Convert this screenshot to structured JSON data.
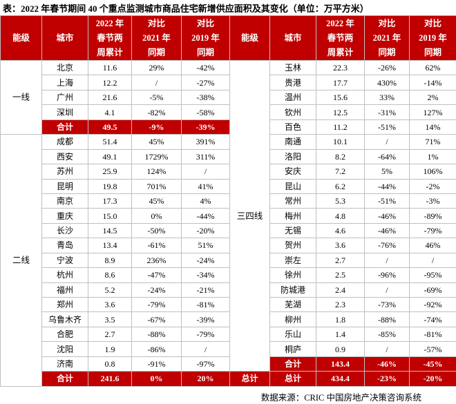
{
  "title": "表：2022 年春节期间 40 个重点监测城市商品住宅新增供应面积及其变化（单位：万平方米）",
  "header": {
    "left": [
      [
        "能级"
      ],
      [
        "城市"
      ],
      [
        "2022 年",
        "春节两",
        "周累计"
      ],
      [
        "对比",
        "2021 年",
        "同期"
      ],
      [
        "对比",
        "2019 年",
        "同期"
      ]
    ],
    "right": [
      [
        "能级"
      ],
      [
        "城市"
      ],
      [
        "2022 年",
        "春节两",
        "周累计"
      ],
      [
        "对比",
        "2021 年",
        "同期"
      ],
      [
        "对比",
        "2019 年",
        "同期"
      ]
    ]
  },
  "left_groups": [
    {
      "tier": "一线",
      "rows": [
        [
          "北京",
          "11.6",
          "29%",
          "-42%"
        ],
        [
          "上海",
          "12.2",
          "/",
          "-27%"
        ],
        [
          "广州",
          "21.6",
          "-5%",
          "-38%"
        ],
        [
          "深圳",
          "4.1",
          "-82%",
          "-58%"
        ]
      ],
      "total": [
        "合计",
        "49.5",
        "-9%",
        "-39%"
      ]
    },
    {
      "tier": "二线",
      "rows": [
        [
          "成都",
          "51.4",
          "45%",
          "391%"
        ],
        [
          "西安",
          "49.1",
          "1729%",
          "311%"
        ],
        [
          "苏州",
          "25.9",
          "124%",
          "/"
        ],
        [
          "昆明",
          "19.8",
          "701%",
          "41%"
        ],
        [
          "南京",
          "17.3",
          "45%",
          "4%"
        ],
        [
          "重庆",
          "15.0",
          "0%",
          "-44%"
        ],
        [
          "长沙",
          "14.5",
          "-50%",
          "-20%"
        ],
        [
          "青岛",
          "13.4",
          "-61%",
          "51%"
        ],
        [
          "宁波",
          "8.9",
          "236%",
          "-24%"
        ],
        [
          "杭州",
          "8.6",
          "-47%",
          "-34%"
        ],
        [
          "福州",
          "5.2",
          "-24%",
          "-21%"
        ],
        [
          "郑州",
          "3.6",
          "-79%",
          "-81%"
        ],
        [
          "乌鲁木齐",
          "3.5",
          "-67%",
          "-39%"
        ],
        [
          "合肥",
          "2.7",
          "-88%",
          "-79%"
        ],
        [
          "沈阳",
          "1.9",
          "-86%",
          "/"
        ],
        [
          "济南",
          "0.8",
          "-91%",
          "-97%"
        ]
      ],
      "total": [
        "合计",
        "241.6",
        "0%",
        "20%"
      ]
    }
  ],
  "right_groups": [
    {
      "tier": "三四线",
      "rows": [
        [
          "玉林",
          "22.3",
          "-26%",
          "62%"
        ],
        [
          "贵港",
          "17.7",
          "430%",
          "-14%"
        ],
        [
          "温州",
          "15.6",
          "33%",
          "2%"
        ],
        [
          "钦州",
          "12.5",
          "-31%",
          "127%"
        ],
        [
          "百色",
          "11.2",
          "-51%",
          "14%"
        ],
        [
          "南通",
          "10.1",
          "/",
          "71%"
        ],
        [
          "洛阳",
          "8.2",
          "-64%",
          "1%"
        ],
        [
          "安庆",
          "7.2",
          "5%",
          "106%"
        ],
        [
          "昆山",
          "6.2",
          "-44%",
          "-2%"
        ],
        [
          "常州",
          "5.3",
          "-51%",
          "-3%"
        ],
        [
          "梅州",
          "4.8",
          "-46%",
          "-89%"
        ],
        [
          "无锡",
          "4.6",
          "-46%",
          "-79%"
        ],
        [
          "贺州",
          "3.6",
          "-76%",
          "46%"
        ],
        [
          "崇左",
          "2.7",
          "/",
          "/"
        ],
        [
          "徐州",
          "2.5",
          "-96%",
          "-95%"
        ],
        [
          "防城港",
          "2.4",
          "/",
          "-69%"
        ],
        [
          "芜湖",
          "2.3",
          "-73%",
          "-92%"
        ],
        [
          "柳州",
          "1.8",
          "-88%",
          "-74%"
        ],
        [
          "乐山",
          "1.4",
          "-85%",
          "-81%"
        ],
        [
          "桐庐",
          "0.9",
          "/",
          "-57%"
        ]
      ],
      "total": [
        "合计",
        "143.4",
        "-46%",
        "-45%"
      ]
    }
  ],
  "grand_total": [
    "总计",
    "总计",
    "434.4",
    "-23%",
    "-20%"
  ],
  "source": "数据来源：CRIC 中国房地产决策咨询系统"
}
